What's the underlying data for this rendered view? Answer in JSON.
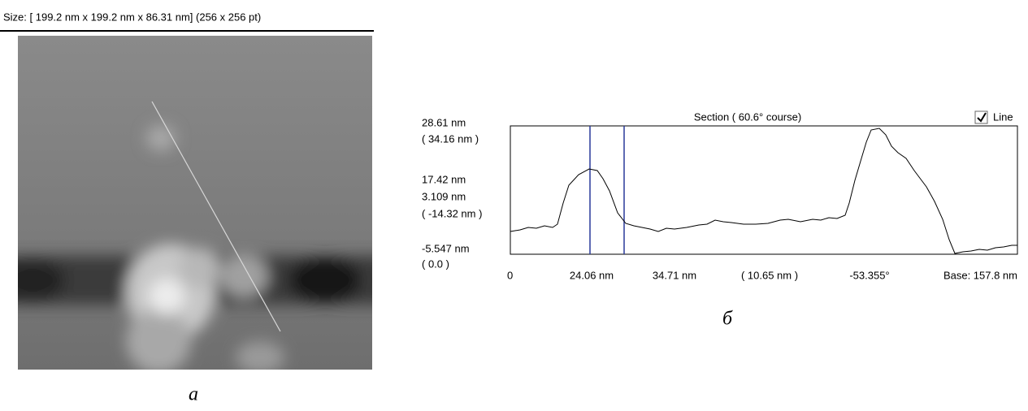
{
  "header": {
    "size_text": "Size: [ 199.2 nm x  199.2 nm x  86.31 nm] (256 x 256 pt)"
  },
  "image": {
    "caption": "а"
  },
  "section": {
    "title": "Section ( 60.6° course)",
    "checkbox_label": "Line",
    "y_labels": [
      "28.61 nm",
      "( 34.16 nm )",
      "17.42 nm",
      "3.109 nm",
      "( -14.32 nm )",
      "-5.547 nm",
      "( 0.0 )"
    ],
    "x_labels": [
      "0",
      "24.06 nm",
      "34.71 nm",
      "( 10.65 nm )",
      "-53.355°",
      "Base:  157.8 nm"
    ],
    "caption": "б"
  }
}
